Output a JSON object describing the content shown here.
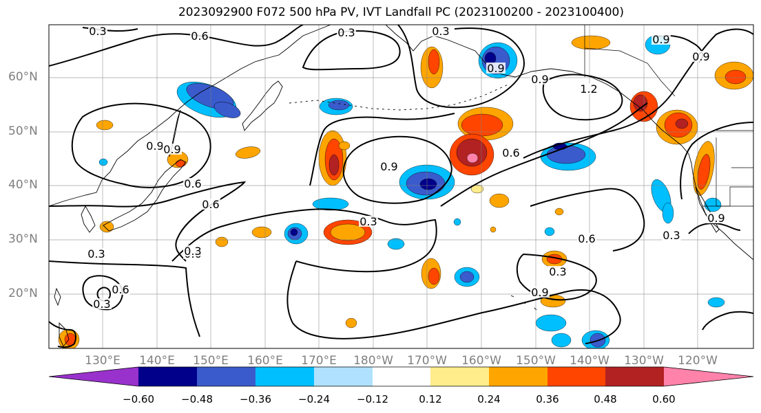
{
  "title": "2023092900 F072 500 hPa PV, IVT Landfall PC (2023100200 - 2023100400)",
  "axes": {
    "lat_labels": [
      "60°N",
      "50°N",
      "40°N",
      "30°N",
      "20°N"
    ],
    "lon_labels": [
      "130°E",
      "140°E",
      "150°E",
      "160°E",
      "170°E",
      "180°W",
      "170°W",
      "160°W",
      "150°W",
      "140°W",
      "130°W",
      "120°W"
    ]
  },
  "colorbar": {
    "colors": [
      "#9932cc",
      "#00008b",
      "#3a5bcc",
      "#00bfff",
      "#b0e2ff",
      "#ffffff",
      "#ffec8b",
      "#ffa500",
      "#ff4500",
      "#b22222",
      "#ff82ab"
    ],
    "labels": [
      "−0.60",
      "−0.48",
      "−0.36",
      "−0.24",
      "−0.12",
      "0.12",
      "0.24",
      "0.36",
      "0.48",
      "0.60"
    ]
  },
  "contour_labels": [
    "0.3",
    "0.6",
    "0.3",
    "0.6",
    "0.9",
    "0.6",
    "0.6",
    "0.3",
    "0.3",
    "0.3",
    "0.9",
    "0.6",
    "0.9",
    "0.9",
    "0.6",
    "0.3",
    "0.3",
    "0.3",
    "0.9",
    "1.2",
    "0.9",
    "0.6",
    "0.9",
    "0.9",
    "0.3",
    "0.9"
  ]
}
